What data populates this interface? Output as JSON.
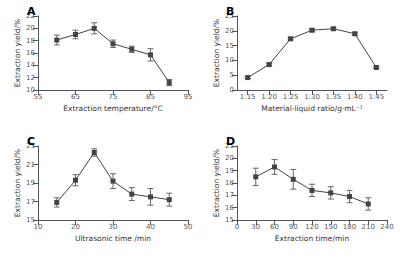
{
  "chart_data": [
    {
      "type": "line",
      "title": "A",
      "x": [
        60,
        65,
        70,
        75,
        80,
        85,
        90
      ],
      "values": [
        18.1,
        19.0,
        20.0,
        17.5,
        16.6,
        15.7,
        11.2
      ],
      "yerr": [
        0.8,
        0.7,
        0.9,
        0.6,
        0.5,
        1.0,
        0.5
      ],
      "xlabel": "Extraction temperature/°C",
      "ylabel": "Extraction yield/%",
      "xlim": [
        55,
        95
      ],
      "xticks": [
        55,
        65,
        75,
        85,
        95
      ],
      "ylim": [
        10,
        22
      ],
      "yticks": [
        10,
        12,
        14,
        16,
        18,
        20,
        22
      ],
      "color": "#444444",
      "marker": "square",
      "grid": false
    },
    {
      "type": "line",
      "title": "B",
      "categories": [
        "1:15",
        "1:20",
        "1:25",
        "1:30",
        "1:35",
        "1:40",
        "1:45"
      ],
      "values": [
        4.2,
        8.6,
        17.3,
        20.2,
        20.7,
        19.0,
        7.6
      ],
      "yerr": [
        0.3,
        0.4,
        0.4,
        0.5,
        0.4,
        0.5,
        0.3
      ],
      "xlabel": "Material-liquid ratio/g·mL⁻¹",
      "ylabel": "Extraction yield/%",
      "ylim": [
        0,
        25
      ],
      "yticks": [
        0,
        5,
        10,
        15,
        20,
        25
      ],
      "color": "#444444",
      "marker": "square",
      "grid": false
    },
    {
      "type": "line",
      "title": "C",
      "x": [
        15,
        20,
        25,
        30,
        35,
        40,
        45
      ],
      "values": [
        16.9,
        19.3,
        22.3,
        19.2,
        17.8,
        17.5,
        17.2
      ],
      "yerr": [
        0.5,
        0.6,
        0.4,
        0.8,
        0.7,
        0.9,
        0.7
      ],
      "xlabel": "Ultrasonic time /min",
      "ylabel": "Extraction yield/%",
      "xlim": [
        10,
        50
      ],
      "xticks": [
        10,
        20,
        30,
        40,
        50
      ],
      "ylim": [
        15,
        23
      ],
      "yticks": [
        15,
        17,
        19,
        21,
        23
      ],
      "color": "#444444",
      "marker": "square",
      "grid": false
    },
    {
      "type": "line",
      "title": "D",
      "x": [
        30,
        60,
        90,
        120,
        150,
        180,
        210
      ],
      "values": [
        18.5,
        19.3,
        18.3,
        17.4,
        17.2,
        16.9,
        16.3
      ],
      "yerr": [
        0.7,
        0.6,
        0.8,
        0.5,
        0.5,
        0.5,
        0.5
      ],
      "xlabel": "Extraction time/min",
      "ylabel": "Extraction yield/%",
      "xlim": [
        0,
        240
      ],
      "xticks": [
        0,
        30,
        60,
        90,
        120,
        150,
        180,
        210,
        240
      ],
      "ylim": [
        15,
        21
      ],
      "yticks": [
        15,
        16,
        17,
        18,
        19,
        20,
        21
      ],
      "color": "#444444",
      "marker": "square",
      "grid": false
    }
  ]
}
